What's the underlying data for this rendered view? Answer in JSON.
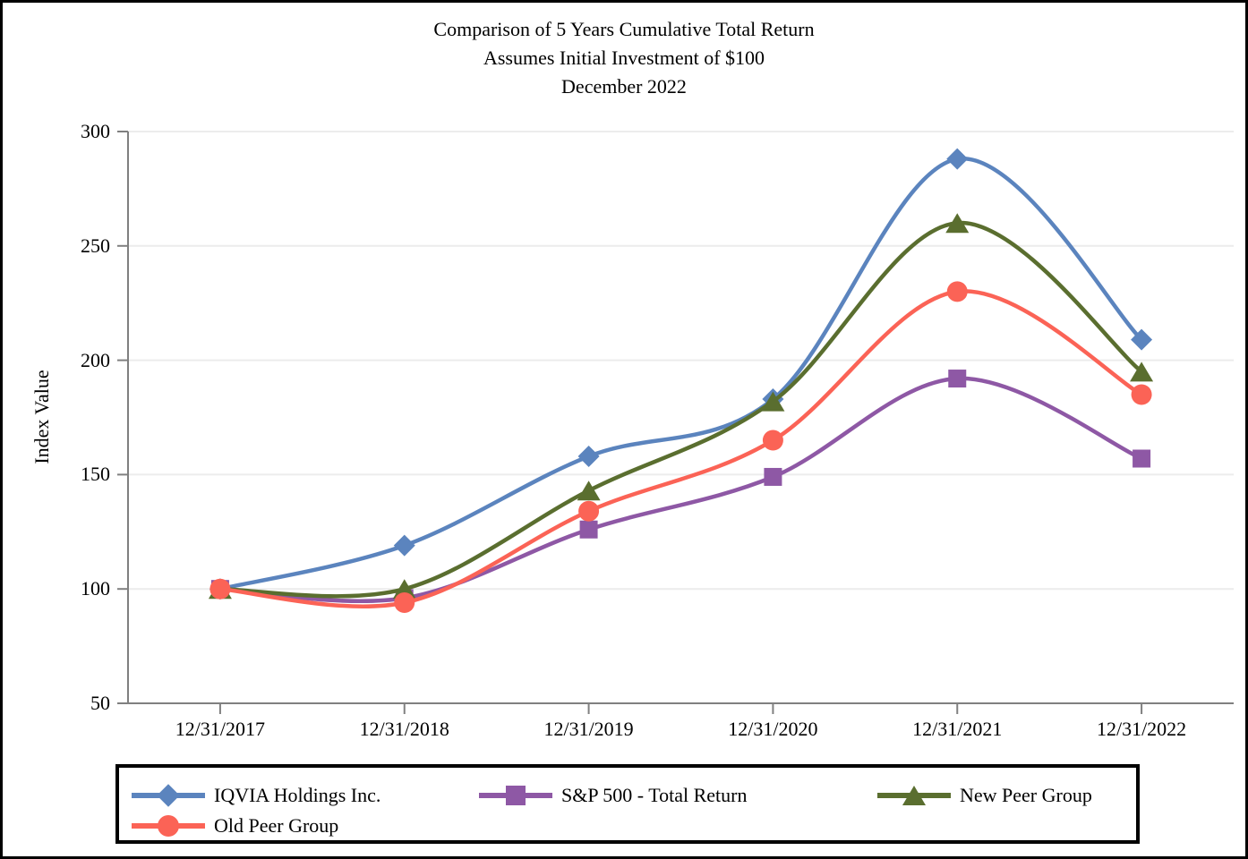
{
  "frame": {
    "background": "#FFFFFF",
    "border_color": "#000000"
  },
  "chart_data": {
    "type": "line",
    "title": "Comparison of 5 Years Cumulative Total Return",
    "subtitle": "Assumes Initial Investment of $100",
    "date_label": "December 2022",
    "ylabel": "Index Value",
    "xlabel": "",
    "x": [
      "12/31/2017",
      "12/31/2018",
      "12/31/2019",
      "12/31/2020",
      "12/31/2021",
      "12/31/2022"
    ],
    "ylim": [
      50,
      300
    ],
    "yticks": [
      300,
      250,
      200,
      150,
      100,
      50
    ],
    "grid": true,
    "line_style": "smooth",
    "legend_position": "bottom-box",
    "axis_color": "#808080",
    "grid_color": "#ECECEC",
    "series": [
      {
        "name": "IQVIA Holdings Inc.",
        "marker": "diamond",
        "color": "#5B84BE",
        "values": [
          100,
          119,
          158,
          183,
          288,
          209
        ]
      },
      {
        "name": "S&P 500 - Total Return",
        "marker": "square",
        "color": "#8E58A5",
        "values": [
          100,
          96,
          126,
          149,
          192,
          157
        ]
      },
      {
        "name": "New Peer Group",
        "marker": "triangle",
        "color": "#5A6E2F",
        "values": [
          100,
          100,
          143,
          182,
          260,
          195
        ]
      },
      {
        "name": "Old Peer Group",
        "marker": "circle",
        "color": "#FB6356",
        "values": [
          100,
          94,
          134,
          165,
          230,
          185
        ]
      }
    ]
  }
}
